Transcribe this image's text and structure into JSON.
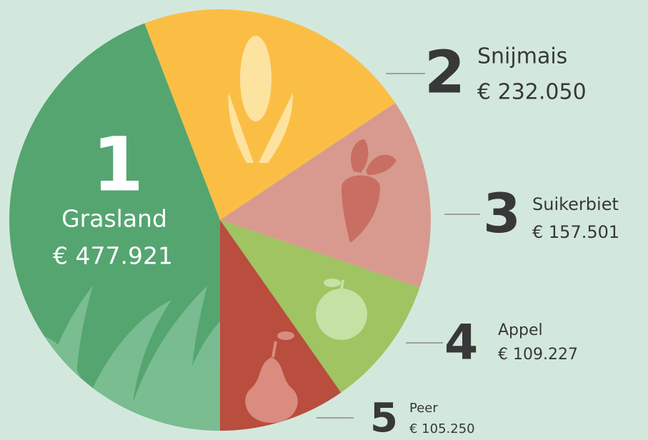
{
  "chart_data": {
    "type": "pie",
    "ranks": [
      1,
      2,
      3,
      4,
      5
    ],
    "categories": [
      "Grasland",
      "Snijmais",
      "Suikerbiet",
      "Appel",
      "Peer"
    ],
    "values": [
      477921,
      232050,
      157501,
      109227,
      105250
    ],
    "value_labels": [
      "€ 477.921",
      "€ 232.050",
      "€ 157.501",
      "€ 109.227",
      "€ 105.250"
    ],
    "colors": [
      "#55a571",
      "#fbbe45",
      "#d89a8e",
      "#9fc461",
      "#b94d3e"
    ]
  }
}
